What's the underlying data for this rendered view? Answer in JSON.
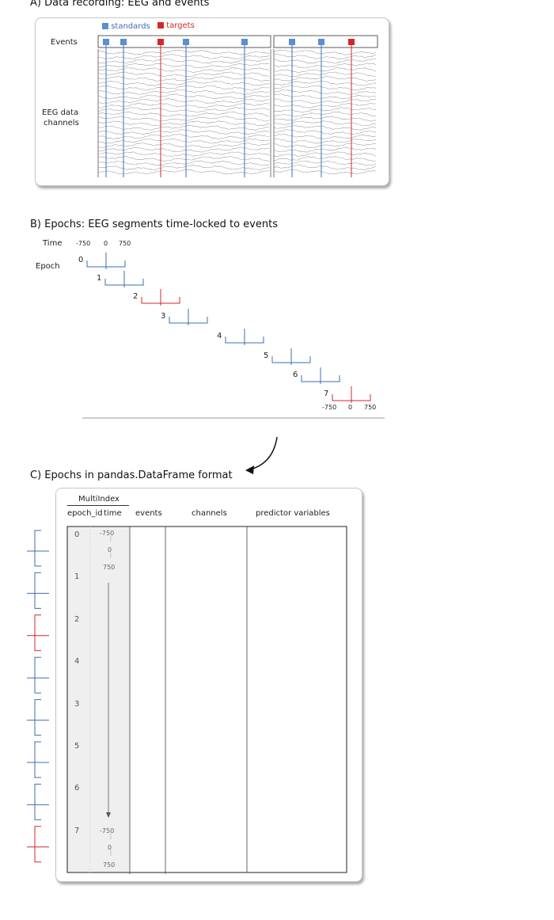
{
  "colors": {
    "standard": "#3b6fb0",
    "standard_fill": "#5b8fcf",
    "target": "#d62728",
    "trace": "#9a9a9a"
  },
  "section_a": {
    "title": "A) Data recording: EEG and events",
    "legend_standards": "standards",
    "legend_targets": "targets",
    "events_label": "Events",
    "channels_label_line1": "EEG data",
    "channels_label_line2": "channels"
  },
  "section_b": {
    "title": "B) Epochs: EEG segments time-locked to events",
    "time_label": "Time",
    "epoch_label": "Epoch",
    "top_ticks": [
      "-750",
      "0",
      "750"
    ],
    "bottom_ticks": [
      "-750",
      "0",
      "750"
    ],
    "epochs": [
      {
        "id": "0",
        "type": "standard"
      },
      {
        "id": "1",
        "type": "standard"
      },
      {
        "id": "2",
        "type": "target"
      },
      {
        "id": "3",
        "type": "standard"
      },
      {
        "id": "4",
        "type": "standard"
      },
      {
        "id": "5",
        "type": "standard"
      },
      {
        "id": "6",
        "type": "standard"
      },
      {
        "id": "7",
        "type": "target"
      }
    ]
  },
  "section_c": {
    "title": "C) Epochs in pandas.DataFrame format",
    "multiindex_label": "MultiIndex",
    "col_epoch_id": "epoch_id",
    "col_time": "time",
    "col_events": "events",
    "col_channels": "channels",
    "col_predictors": "predictor variables",
    "row_ids": [
      "0",
      "1",
      "2",
      "4",
      "3",
      "5",
      "6",
      "7"
    ],
    "row_types": [
      "standard",
      "standard",
      "target",
      "standard",
      "standard",
      "standard",
      "standard",
      "target"
    ],
    "time_top": [
      "-750",
      "0",
      "750"
    ],
    "time_bottom": [
      "-750",
      "0",
      "750"
    ]
  }
}
